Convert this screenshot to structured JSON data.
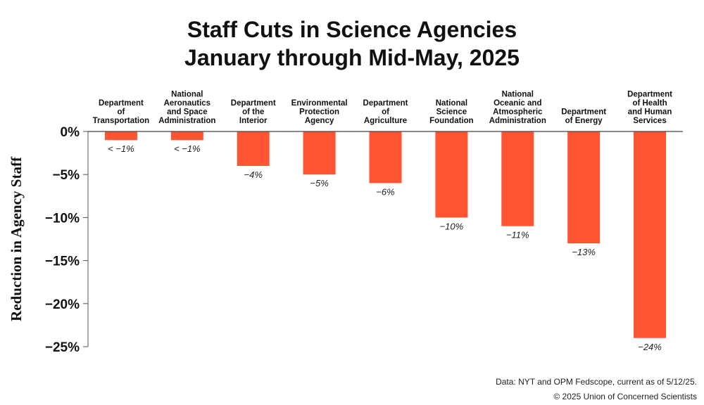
{
  "chart_data": {
    "type": "bar",
    "title": "Staff Cuts in Science Agencies",
    "subtitle": "January through Mid-May, 2025",
    "ylabel": "Reduction in Agency Staff",
    "xlabel": "",
    "ylim": [
      -25,
      0
    ],
    "yticks": [
      0,
      -5,
      -10,
      -15,
      -20,
      -25
    ],
    "ytick_labels": [
      "0%",
      "−5%",
      "−10%",
      "−15%",
      "−20%",
      "−25%"
    ],
    "grid": false,
    "categories": [
      [
        "Department",
        "of",
        "Transportation"
      ],
      [
        "National",
        "Aeronautics",
        "and Space",
        "Administration"
      ],
      [
        "Department",
        "of the",
        "Interior"
      ],
      [
        "Environmental",
        "Protection",
        "Agency"
      ],
      [
        "Department",
        "of",
        "Agriculture"
      ],
      [
        "National",
        "Science",
        "Foundation"
      ],
      [
        "National",
        "Oceanic and",
        "Atmospheric",
        "Administration"
      ],
      [
        "Department",
        "of Energy"
      ],
      [
        "Department",
        "of Health",
        "and Human",
        "Services"
      ]
    ],
    "values": [
      -1,
      -1,
      -4,
      -5,
      -6,
      -10,
      -11,
      -13,
      -24
    ],
    "data_labels": [
      "< −1%",
      "< −1%",
      "−4%",
      "−5%",
      "−6%",
      "−10%",
      "−11%",
      "−13%",
      "−24%"
    ],
    "bar_color": "#FF5533"
  },
  "footer": {
    "source": "Data: NYT and OPM Fedscope, current as of 5/12/25.",
    "copyright": "© 2025 Union of Concerned Scientists"
  }
}
